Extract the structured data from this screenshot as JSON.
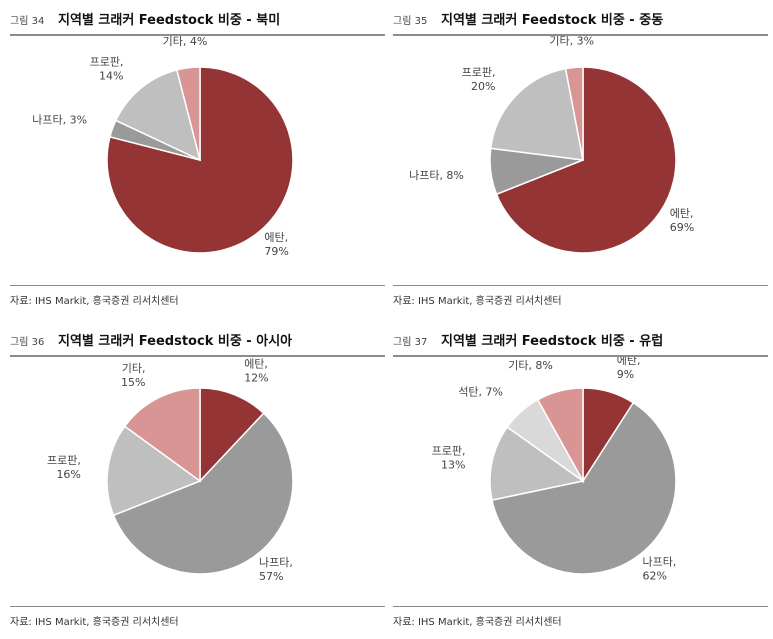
{
  "colors": {
    "dark_red": "#953434",
    "dark_gray": "#9a9a9a",
    "light_gray": "#bfbfbf",
    "very_light_gray": "#d9d9d9",
    "pink": "#d99594"
  },
  "chart_data": [
    {
      "type": "pie",
      "figure_no": "그림 34",
      "title": "지역별 크래커 Feedstock 비중 - 북미",
      "source": "자료: IHS Markit, 흥국증권 리서치센터",
      "slices": [
        {
          "name": "에탄",
          "value": 79,
          "label": "79%",
          "color": "#953434",
          "anchor": "end"
        },
        {
          "name": "나프타",
          "value": 3,
          "label": "3%",
          "color": "#9a9a9a",
          "anchor": "start"
        },
        {
          "name": "프로판",
          "value": 14,
          "label": "14%",
          "color": "#bfbfbf",
          "anchor": "start"
        },
        {
          "name": "기타",
          "value": 4,
          "label": "4%",
          "color": "#d99594",
          "anchor": "start"
        }
      ]
    },
    {
      "type": "pie",
      "figure_no": "그림 35",
      "title": "지역별 크래커 Feedstock 비중 - 중동",
      "source": "자료: IHS Markit, 흥국증권 리서치센터",
      "slices": [
        {
          "name": "에탄",
          "value": 69,
          "label": "69%",
          "color": "#953434",
          "anchor": "end"
        },
        {
          "name": "나프타",
          "value": 8,
          "label": "8%",
          "color": "#9a9a9a",
          "anchor": "start"
        },
        {
          "name": "프로판",
          "value": 20,
          "label": "20%",
          "color": "#bfbfbf",
          "anchor": "start"
        },
        {
          "name": "기타",
          "value": 3,
          "label": "3%",
          "color": "#d99594",
          "anchor": "start"
        }
      ]
    },
    {
      "type": "pie",
      "figure_no": "그림 36",
      "title": "지역별 크래커 Feedstock 비중 - 아시아",
      "source": "자료: IHS Markit, 흥국증권 리서치센터",
      "slices": [
        {
          "name": "에탄",
          "value": 12,
          "label": "12%",
          "color": "#953434",
          "anchor": "start"
        },
        {
          "name": "나프타",
          "value": 57,
          "label": "57%",
          "color": "#9a9a9a",
          "anchor": "end"
        },
        {
          "name": "프로판",
          "value": 16,
          "label": "16%",
          "color": "#bfbfbf",
          "anchor": "start"
        },
        {
          "name": "기타",
          "value": 15,
          "label": "15%",
          "color": "#d99594",
          "anchor": "start"
        }
      ]
    },
    {
      "type": "pie",
      "figure_no": "그림 37",
      "title": "지역별 크래커 Feedstock 비중 - 유럽",
      "source": "자료: IHS Markit, 흥국증권 리서치센터",
      "slices": [
        {
          "name": "에탄",
          "value": 9,
          "label": "9%",
          "color": "#953434",
          "anchor": "start"
        },
        {
          "name": "나프타",
          "value": 62,
          "label": "62%",
          "color": "#9a9a9a",
          "anchor": "end"
        },
        {
          "name": "프로판",
          "value": 13,
          "label": "13%",
          "color": "#bfbfbf",
          "anchor": "start"
        },
        {
          "name": "석탄",
          "value": 7,
          "label": "7%",
          "color": "#d9d9d9",
          "anchor": "start"
        },
        {
          "name": "기타",
          "value": 8,
          "label": "8%",
          "color": "#d99594",
          "anchor": "start"
        }
      ]
    }
  ]
}
